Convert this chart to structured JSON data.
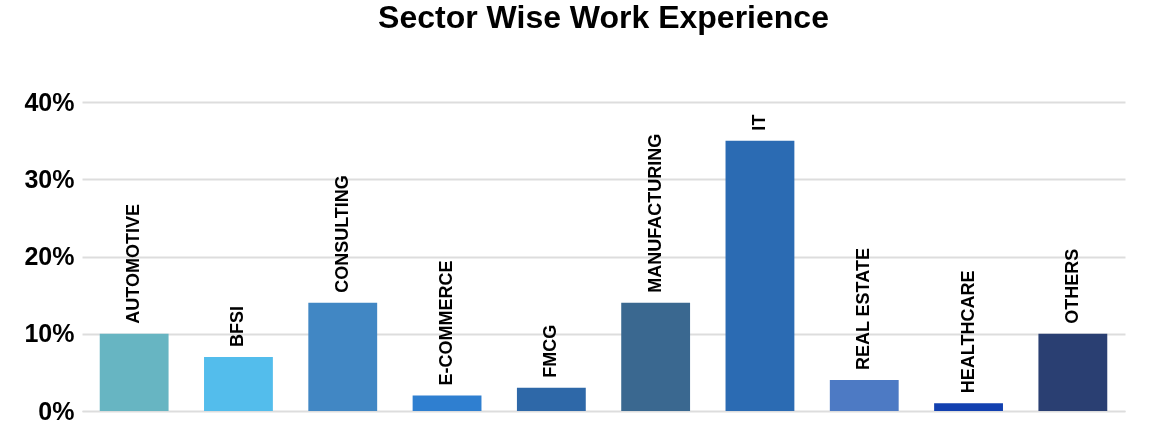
{
  "chart_data": {
    "type": "bar",
    "title": "Sector Wise Work Experience",
    "categories": [
      "AUTOMOTIVE",
      "BFSI",
      "CONSULTING",
      "E-COMMERCE",
      "FMCG",
      "MANUFACTURING",
      "IT",
      "REAL ESTATE",
      "HEALTHCARE",
      "OTHERS"
    ],
    "values": [
      10,
      7,
      14,
      2,
      3,
      14,
      35,
      4,
      1,
      10
    ],
    "colors": [
      "#67b5c2",
      "#53bdec",
      "#4187c4",
      "#2f7fd0",
      "#2e68a8",
      "#3a6890",
      "#2b6bb3",
      "#4d7ac4",
      "#1240b0",
      "#2a3f72"
    ],
    "ylim": [
      0,
      40
    ],
    "yticks": [
      {
        "value": 0,
        "label": "0%"
      },
      {
        "value": 10,
        "label": "10%"
      },
      {
        "value": 20,
        "label": "20%"
      },
      {
        "value": 30,
        "label": "30%"
      },
      {
        "value": 40,
        "label": "40%"
      }
    ],
    "grid": "y",
    "tick_labels": "y"
  }
}
